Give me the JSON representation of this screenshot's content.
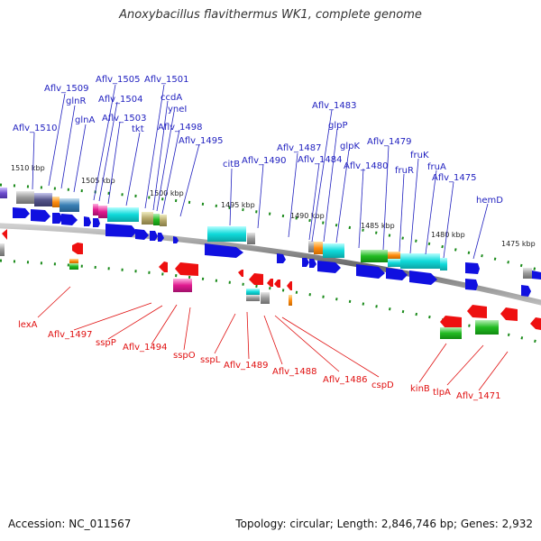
{
  "title": "Anoxybacillus flavithermus WK1, complete genome",
  "footer": {
    "accession": "Accession: NC_011567",
    "stats": "Topology: circular; Length: 2,846,746 bp; Genes: 2,932"
  },
  "colors": {
    "label_top": "#1f1fbf",
    "label_bottom": "#e01010",
    "backbone": "#888888",
    "forward_arrow": "#1010e0",
    "reverse_arrow": "#ee1010",
    "tick": "#1a8a1a"
  },
  "kbp_ticks": [
    "1510 kbp",
    "1505 kbp",
    "1500 kbp",
    "1495 kbp",
    "1490 kbp",
    "1485 kbp",
    "1480 kbp",
    "1475 kbp"
  ],
  "top_labels": [
    "Aflv_1510",
    "Aflv_1509",
    "glnR",
    "glnA",
    "Aflv_1505",
    "Aflv_1504",
    "Aflv_1503",
    "Aflv_1501",
    "ccdA",
    "yneI",
    "tkt",
    "Aflv_1498",
    "Aflv_1495",
    "citB",
    "Aflv_1490",
    "Aflv_1487",
    "Aflv_1484",
    "Aflv_1483",
    "glpP",
    "glpK",
    "Aflv_1480",
    "Aflv_1479",
    "fruR",
    "fruK",
    "fruA",
    "Aflv_1475",
    "hemD"
  ],
  "bottom_labels": [
    "lexA",
    "Aflv_1497",
    "sspP",
    "Aflv_1494",
    "sspO",
    "sspL",
    "Aflv_1489",
    "Aflv_1488",
    "Aflv_1486",
    "cspD",
    "kinB",
    "tlpA",
    "Aflv_1471"
  ]
}
